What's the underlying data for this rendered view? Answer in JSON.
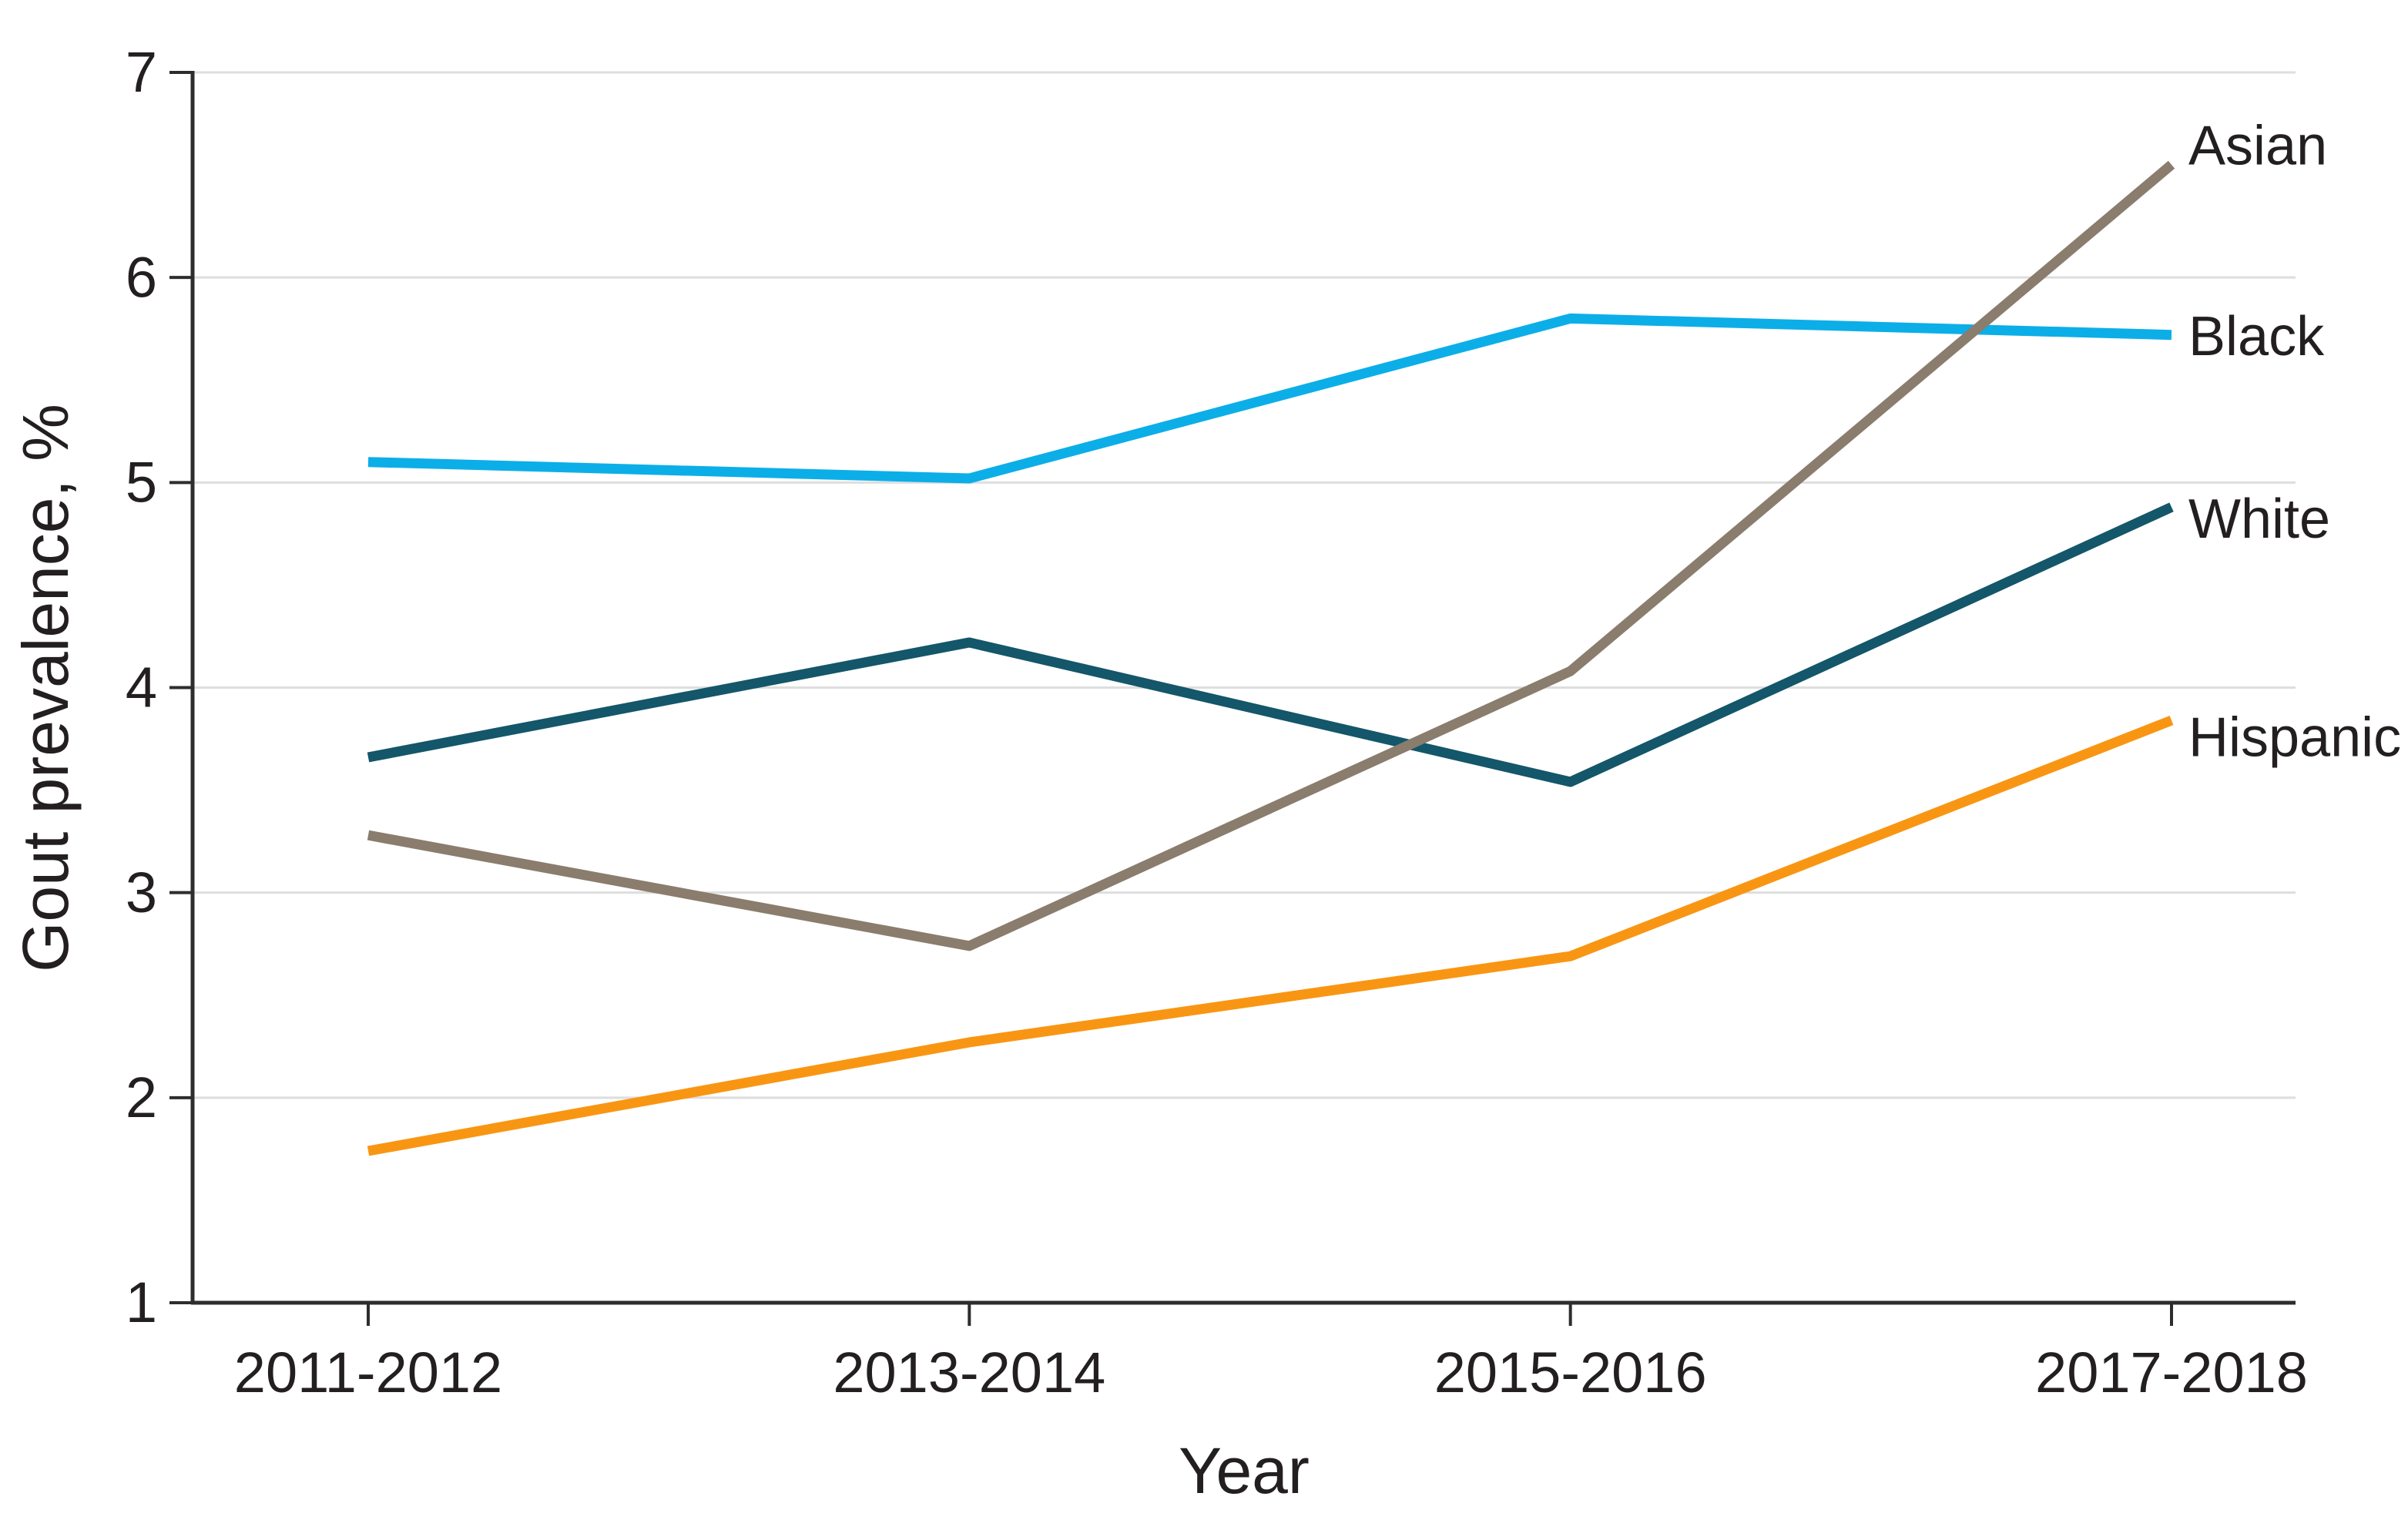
{
  "chart_data": {
    "type": "line",
    "title": "",
    "xlabel": "Year",
    "ylabel": "Gout prevalence, %",
    "categories": [
      "2011-2012",
      "2013-2014",
      "2015-2016",
      "2017-2018"
    ],
    "series": [
      {
        "name": "Black",
        "color": "#0caee8",
        "values": [
          5.1,
          5.02,
          5.8,
          5.72
        ]
      },
      {
        "name": "White",
        "color": "#14566a",
        "values": [
          3.66,
          4.22,
          3.54,
          4.88
        ]
      },
      {
        "name": "Hispanic",
        "color": "#f89613",
        "values": [
          1.74,
          2.27,
          2.69,
          3.84
        ]
      },
      {
        "name": "Asian",
        "color": "#8a7d6d",
        "values": [
          3.28,
          2.74,
          4.08,
          6.55
        ]
      }
    ],
    "ylim": [
      1,
      7
    ],
    "yticks": [
      1,
      2,
      3,
      4,
      5,
      6,
      7
    ],
    "grid": "horizontal",
    "legend_position": "right-of-line-ends",
    "colors": {
      "axis": "#2d2d2d",
      "gridline": "#dedede",
      "text": "#231f20",
      "background": "#ffffff"
    }
  }
}
